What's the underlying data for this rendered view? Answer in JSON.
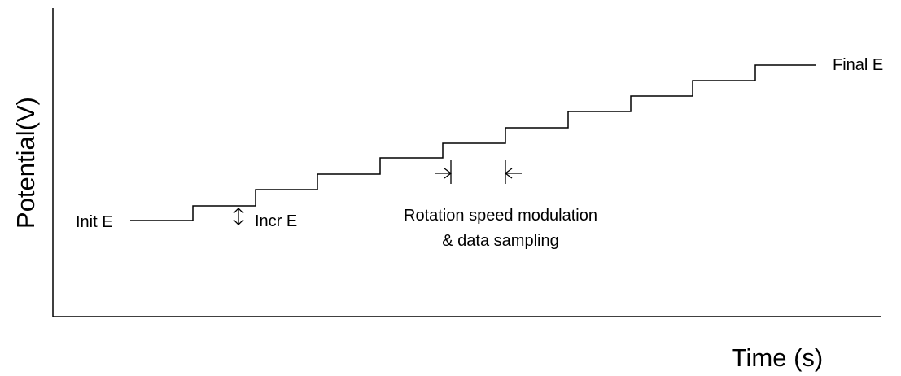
{
  "diagram": {
    "type": "staircase potential waveform",
    "x_axis_label": "Time (s)",
    "y_axis_label": "Potential(V)",
    "step_count": 10,
    "labels": {
      "init": "Init E",
      "final": "Final E",
      "increment": "Incr E",
      "sampling_line1": "Rotation speed modulation",
      "sampling_line2": "& data sampling"
    },
    "line_color": "#000000",
    "background_color": "#ffffff"
  }
}
